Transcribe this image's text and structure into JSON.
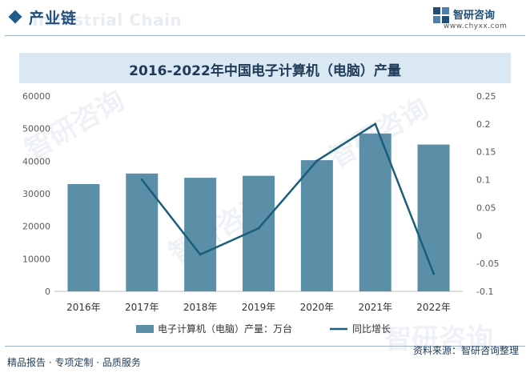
{
  "header": {
    "section_title": "产业链",
    "watermark_text": "Industrial Chain",
    "brand_name": "智研咨询",
    "brand_url": "www.chyxx.com"
  },
  "chart_data": {
    "type": "bar+line",
    "title": "2016-2022年中国电子计算机（电脑）产量",
    "categories": [
      "2016年",
      "2017年",
      "2018年",
      "2019年",
      "2020年",
      "2021年",
      "2022年"
    ],
    "series": [
      {
        "name": "电子计算机（电脑）产量：万台",
        "type": "bar",
        "axis": "left",
        "color": "#5b8fa8",
        "values": [
          32950,
          36200,
          34900,
          35500,
          40300,
          48500,
          45100
        ]
      },
      {
        "name": "同比增长",
        "type": "line",
        "axis": "right",
        "color": "#1b5e7a",
        "values": [
          null,
          0.1,
          -0.034,
          0.013,
          0.134,
          0.2,
          -0.068
        ]
      }
    ],
    "y_left": {
      "min": 0,
      "max": 60000,
      "ticks": [
        0,
        10000,
        20000,
        30000,
        40000,
        50000,
        60000
      ]
    },
    "y_right": {
      "min": -0.1,
      "max": 0.25,
      "ticks": [
        "-0.1",
        "-0.05",
        "0",
        "0.05",
        "0.1",
        "0.15",
        "0.2",
        "0.25"
      ]
    },
    "grid": false,
    "legend_position": "bottom"
  },
  "footer": {
    "left_text": "精品报告 · 专项定制 · 品质服务",
    "source_text": "资料来源：智研咨询整理"
  }
}
